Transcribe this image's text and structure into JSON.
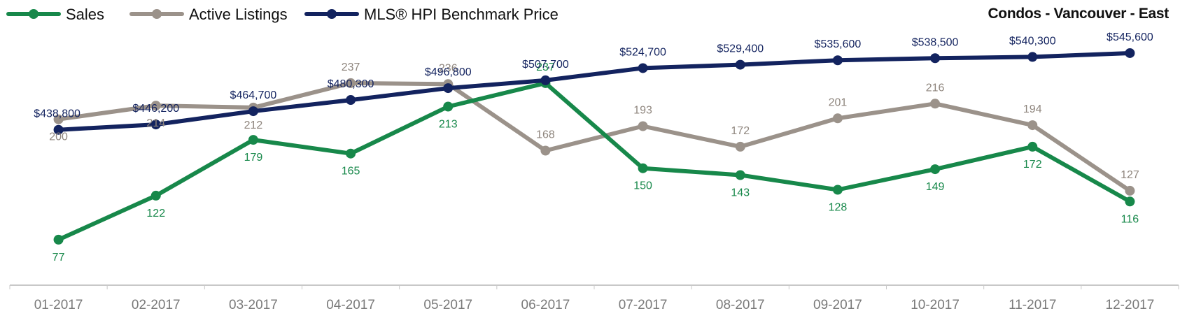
{
  "chart_data": {
    "type": "line",
    "title": "Condos - Vancouver - East",
    "categories": [
      "01-2017",
      "02-2017",
      "03-2017",
      "04-2017",
      "05-2017",
      "06-2017",
      "07-2017",
      "08-2017",
      "09-2017",
      "10-2017",
      "11-2017",
      "12-2017"
    ],
    "series": [
      {
        "name": "Sales",
        "color": "#17884a",
        "axis": "left",
        "values": [
          77,
          122,
          179,
          165,
          213,
          237,
          150,
          143,
          128,
          149,
          172,
          116
        ],
        "labels": [
          "77",
          "122",
          "179",
          "165",
          "213",
          "237",
          "150",
          "143",
          "128",
          "149",
          "172",
          "116"
        ]
      },
      {
        "name": "Active Listings",
        "color": "#9b928a",
        "axis": "left",
        "values": [
          200,
          214,
          212,
          237,
          236,
          168,
          193,
          172,
          201,
          216,
          194,
          127
        ],
        "labels": [
          "200",
          "214",
          "212",
          "237",
          "236",
          "168",
          "193",
          "172",
          "201",
          "216",
          "194",
          "127"
        ]
      },
      {
        "name": "MLS® HPI Benchmark Price",
        "color": "#13235f",
        "axis": "right",
        "values": [
          438800,
          446200,
          464700,
          480300,
          496800,
          507700,
          524700,
          529400,
          535600,
          538500,
          540300,
          545600
        ],
        "labels": [
          "$438,800",
          "$446,200",
          "$464,700",
          "$480,300",
          "$496,800",
          "$507,700",
          "$524,700",
          "$529,400",
          "$535,600",
          "$538,500",
          "$540,300",
          "$545,600"
        ]
      }
    ],
    "legend_position": "top-left",
    "grid": false
  }
}
